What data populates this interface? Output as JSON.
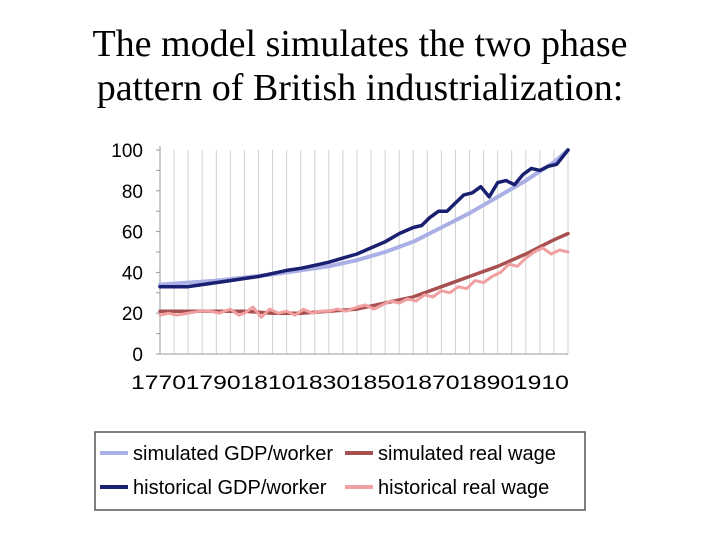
{
  "slide": {
    "title_line1": "The model simulates the two phase",
    "title_line2": "pattern of British industrialization:"
  },
  "chart_data": {
    "type": "line",
    "title": "",
    "xlabel": "",
    "ylabel": "",
    "ylim": [
      0,
      100
    ],
    "xlim": [
      1770,
      1915
    ],
    "yticks": [
      0,
      20,
      40,
      60,
      80,
      100
    ],
    "xticks": [
      1770,
      1790,
      1810,
      1830,
      1850,
      1870,
      1890,
      1910
    ],
    "grid": "vertical",
    "legend_position": "bottom",
    "series": [
      {
        "name": "simulated GDP/worker",
        "color": "#aab0e6",
        "x": [
          1770,
          1780,
          1790,
          1800,
          1810,
          1820,
          1830,
          1840,
          1850,
          1860,
          1870,
          1880,
          1890,
          1900,
          1910,
          1915
        ],
        "values": [
          34,
          35,
          36,
          37.5,
          39,
          41,
          43,
          46,
          50,
          55,
          62,
          69,
          77,
          85,
          94,
          100
        ]
      },
      {
        "name": "historical GDP/worker",
        "color": "#1a2070",
        "x": [
          1770,
          1775,
          1780,
          1785,
          1790,
          1795,
          1800,
          1805,
          1810,
          1815,
          1820,
          1825,
          1830,
          1835,
          1840,
          1845,
          1850,
          1855,
          1860,
          1863,
          1866,
          1869,
          1872,
          1875,
          1878,
          1881,
          1884,
          1887,
          1890,
          1893,
          1896,
          1899,
          1902,
          1905,
          1908,
          1911,
          1915
        ],
        "values": [
          33,
          33,
          33,
          34,
          35,
          36,
          37,
          38,
          39.5,
          41,
          42,
          43.5,
          45,
          47,
          49,
          52,
          55,
          59,
          62,
          63,
          67,
          70,
          70,
          74,
          78,
          79,
          82,
          77,
          84,
          85,
          83,
          88,
          91,
          90,
          92,
          93,
          100
        ]
      },
      {
        "name": "simulated real wage",
        "color": "#a85050",
        "x": [
          1770,
          1780,
          1790,
          1800,
          1810,
          1820,
          1830,
          1840,
          1850,
          1860,
          1870,
          1880,
          1890,
          1900,
          1910,
          1915
        ],
        "values": [
          21,
          21,
          21,
          21,
          20,
          20,
          21,
          22,
          25,
          28,
          33,
          38,
          43,
          49,
          56,
          59
        ]
      },
      {
        "name": "historical real wage",
        "color": "#f0a0a0",
        "x": [
          1770,
          1773,
          1776,
          1780,
          1784,
          1788,
          1791,
          1795,
          1798,
          1800,
          1803,
          1806,
          1809,
          1812,
          1815,
          1818,
          1821,
          1824,
          1827,
          1830,
          1833,
          1836,
          1840,
          1843,
          1846,
          1849,
          1852,
          1855,
          1858,
          1861,
          1864,
          1867,
          1870,
          1873,
          1876,
          1879,
          1882,
          1885,
          1888,
          1891,
          1894,
          1897,
          1900,
          1903,
          1906,
          1909,
          1912,
          1915
        ],
        "values": [
          19,
          20,
          19,
          20,
          21,
          21,
          20,
          22,
          19,
          20,
          23,
          18,
          22,
          20,
          21,
          19,
          22,
          20,
          21,
          21,
          22,
          21,
          23,
          24,
          22,
          24,
          26,
          25,
          27,
          26,
          29,
          28,
          31,
          30,
          33,
          32,
          36,
          35,
          38,
          40,
          44,
          43,
          47,
          50,
          52,
          49,
          51,
          50
        ]
      }
    ],
    "legend": [
      {
        "series": "simulated GDP/worker",
        "label": "simulated GDP/worker"
      },
      {
        "series": "simulated real wage",
        "label": "simulated real wage"
      },
      {
        "series": "historical GDP/worker",
        "label": "historical GDP/worker"
      },
      {
        "series": "historical real wage",
        "label": "historical real wage"
      }
    ]
  }
}
